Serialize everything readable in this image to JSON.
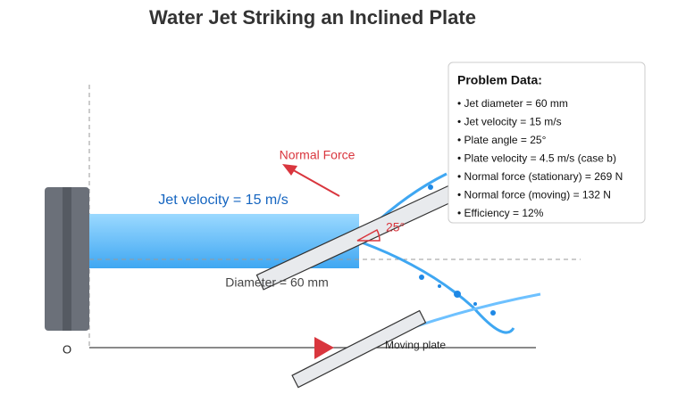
{
  "title": "Water Jet Striking an Inclined Plate",
  "labels": {
    "jet_velocity": "Jet velocity = 15 m/s",
    "normal_force": "Normal Force",
    "diameter": "Diameter = 60 mm",
    "angle": "25°",
    "origin": "O",
    "moving_plate": "Moving plate"
  },
  "problem_data": {
    "title": "Problem Data:",
    "items": [
      "• Jet diameter = 60 mm",
      "• Jet velocity = 15 m/s",
      "• Plate angle = 25°",
      "• Plate velocity = 4.5 m/s (case b)",
      "• Normal force (stationary) = 269 N",
      "• Normal force (moving) = 132 N",
      "• Efficiency = 12%"
    ]
  }
}
